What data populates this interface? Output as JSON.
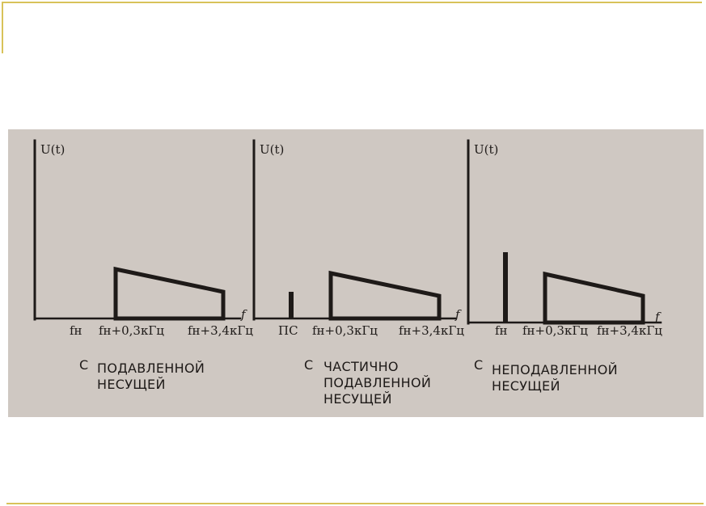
{
  "panels": [
    {
      "axis_label": "U(t)",
      "f_label": "f",
      "ticks": [
        "fн",
        "fн+0,3кГц",
        "fн+3,4кГц"
      ],
      "caption_prefix": "С",
      "caption_lines": [
        "ПОДАВЛЕННОЙ",
        "НЕСУЩЕЙ"
      ]
    },
    {
      "axis_label": "U(t)",
      "f_label": "f",
      "ticks": [
        "ПС",
        "fн+0,3кГц",
        "fн+3,4кГц"
      ],
      "caption_prefix": "С",
      "caption_lines": [
        "ЧАСТИЧНО",
        "ПОДАВЛЕННОЙ",
        "НЕСУЩЕЙ"
      ]
    },
    {
      "axis_label": "U(t)",
      "f_label": "f",
      "ticks": [
        "fн",
        "fн+0,3кГц",
        "fн+3,4кГц"
      ],
      "caption_prefix": "С",
      "caption_lines": [
        "НЕПОДАВЛЕННОЙ",
        "НЕСУЩЕЙ"
      ]
    }
  ],
  "colors": {
    "scan_bg": "#cfc8c2",
    "ink": "#1e1a18",
    "frame_accent": "#d8c25a"
  }
}
